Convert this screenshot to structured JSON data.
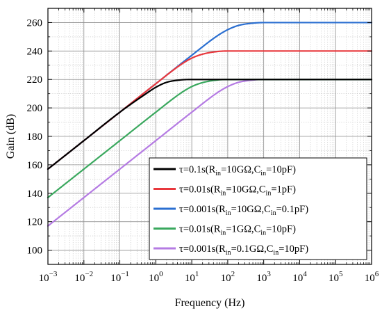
{
  "chart_data": {
    "type": "line",
    "title": "",
    "xlabel": "Frequency (Hz)",
    "ylabel": "Gain (dB)",
    "xscale": "log",
    "xlim": [
      0.001,
      1000000
    ],
    "ylim": [
      90,
      270
    ],
    "grid": true,
    "legend_position": "bottom-right",
    "x_ticks": [
      {
        "base": "10",
        "exp": "−3",
        "value": 0.001
      },
      {
        "base": "10",
        "exp": "−2",
        "value": 0.01
      },
      {
        "base": "10",
        "exp": "−1",
        "value": 0.1
      },
      {
        "base": "10",
        "exp": "0",
        "value": 1
      },
      {
        "base": "10",
        "exp": "1",
        "value": 10
      },
      {
        "base": "10",
        "exp": "2",
        "value": 100
      },
      {
        "base": "10",
        "exp": "3",
        "value": 1000
      },
      {
        "base": "10",
        "exp": "4",
        "value": 10000
      },
      {
        "base": "10",
        "exp": "5",
        "value": 100000
      },
      {
        "base": "10",
        "exp": "6",
        "value": 1000000
      }
    ],
    "y_ticks": [
      {
        "label": "100",
        "value": 100
      },
      {
        "label": "120",
        "value": 120
      },
      {
        "label": "140",
        "value": 140
      },
      {
        "label": "160",
        "value": 160
      },
      {
        "label": "180",
        "value": 180
      },
      {
        "label": "200",
        "value": 200
      },
      {
        "label": "220",
        "value": 220
      },
      {
        "label": "240",
        "value": 240
      },
      {
        "label": "260",
        "value": 260
      }
    ],
    "series": [
      {
        "color": "#000000",
        "label_parts": [
          "τ=0.1s(R",
          "in",
          "=10GΩ,C",
          "in",
          "=10pF)"
        ],
        "x": [
          0.001,
          0.01,
          0.1,
          0.5,
          1,
          2,
          5,
          10,
          30,
          1000000
        ],
        "y": [
          157,
          177,
          197,
          209.5,
          214.5,
          218,
          219.7,
          220,
          220,
          220
        ]
      },
      {
        "color": "#e8383d",
        "label_parts": [
          "τ=0.01s(R",
          "in",
          "=10GΩ,C",
          "in",
          "=1pF)"
        ],
        "x": [
          0.001,
          0.01,
          0.1,
          1,
          5,
          10,
          20,
          50,
          100,
          300,
          1000000
        ],
        "y": [
          157,
          177,
          197,
          217,
          230.5,
          235,
          237.8,
          239.6,
          240,
          240,
          240
        ]
      },
      {
        "color": "#2b6fd1",
        "label_parts": [
          "τ=0.001s(R",
          "in",
          "=10GΩ,C",
          "in",
          "=0.1pF)"
        ],
        "x": [
          0.001,
          0.01,
          0.1,
          1,
          10,
          50,
          100,
          200,
          500,
          1000,
          1000000
        ],
        "y": [
          157,
          177,
          197,
          217,
          237,
          250.5,
          255,
          258,
          259.6,
          260,
          260
        ]
      },
      {
        "color": "#3aa85e",
        "label_parts": [
          "τ=0.01s(R",
          "in",
          "=1GΩ,C",
          "in",
          "=10pF)"
        ],
        "x": [
          0.001,
          0.01,
          0.1,
          1,
          5,
          10,
          20,
          50,
          100,
          300,
          1000000
        ],
        "y": [
          137,
          157,
          177,
          197,
          210.5,
          215,
          217.8,
          219.6,
          220,
          220,
          220
        ]
      },
      {
        "color": "#b57be3",
        "label_parts": [
          "τ=0.001s(R",
          "in",
          "=0.1GΩ,C",
          "in",
          "=10pF)"
        ],
        "x": [
          0.001,
          0.01,
          0.1,
          1,
          10,
          50,
          100,
          200,
          500,
          1000,
          1000000
        ],
        "y": [
          117,
          137,
          157,
          177,
          197,
          210.5,
          215,
          218,
          219.6,
          220,
          220
        ]
      }
    ]
  }
}
